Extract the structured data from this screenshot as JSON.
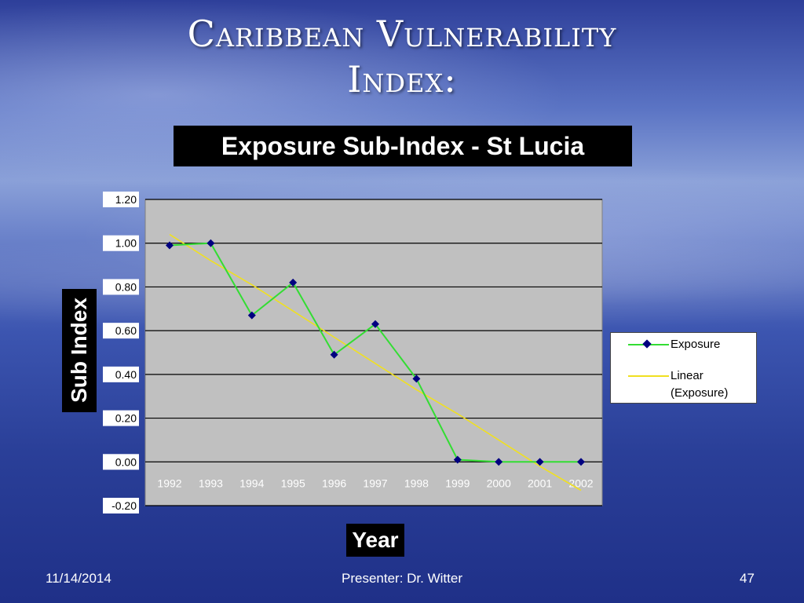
{
  "slide": {
    "title_line1": "Caribbean Vulnerability",
    "title_line2": "Index:",
    "footer_date": "11/14/2014",
    "footer_presenter": "Presenter: Dr. Witter",
    "footer_page": "47"
  },
  "colors": {
    "plot_background": "#c0c0c0",
    "exposure_line": "#33dd33",
    "exposure_marker": "#000080",
    "trend_line": "#f0e020"
  },
  "chart_data": {
    "type": "line",
    "title": "Exposure Sub-Index - St Lucia",
    "xlabel": "Year",
    "ylabel": "Sub Index",
    "categories": [
      "1992",
      "1993",
      "1994",
      "1995",
      "1996",
      "1997",
      "1998",
      "1999",
      "2000",
      "2001",
      "2002"
    ],
    "yticks": [
      "-0.20",
      "0.00",
      "0.20",
      "0.40",
      "0.60",
      "0.80",
      "1.00",
      "1.20"
    ],
    "ylim": [
      -0.2,
      1.2
    ],
    "grid": true,
    "legend_position": "right",
    "series": [
      {
        "name": "Exposure",
        "marker": "diamond",
        "values": [
          0.99,
          1.0,
          0.67,
          0.82,
          0.49,
          0.63,
          0.38,
          0.01,
          0.0,
          0.0,
          0.0
        ]
      },
      {
        "name": "Linear (Exposure)",
        "values": [
          1.04,
          0.92,
          0.81,
          0.69,
          0.57,
          0.45,
          0.33,
          0.22,
          0.1,
          -0.02,
          -0.13
        ]
      }
    ]
  }
}
